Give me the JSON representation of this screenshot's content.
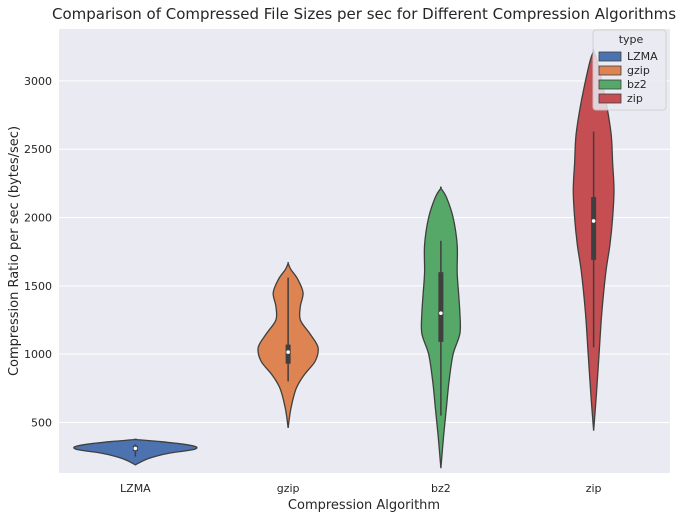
{
  "chart_data": {
    "type": "violin",
    "title": "Comparison of Compressed File Sizes per sec for Different Compression Algorithms",
    "xlabel": "Compression Algorithm",
    "ylabel": "Compression Ratio per sec (bytes/sec)",
    "categories": [
      "LZMA",
      "gzip",
      "bz2",
      "zip"
    ],
    "ylim": [
      130,
      3380
    ],
    "yticks": [
      500,
      1000,
      1500,
      2000,
      2500,
      3000
    ],
    "grid": true,
    "legend": {
      "title": "type",
      "position": "top-right",
      "entries": [
        "LZMA",
        "gzip",
        "bz2",
        "zip"
      ]
    },
    "colors": {
      "LZMA": "#4c72b0",
      "gzip": "#dd8452",
      "bz2": "#55a868",
      "zip": "#c44e52",
      "background": "#eaeaf2",
      "grid": "#ffffff",
      "outline": "#3f3f3f"
    },
    "series": [
      {
        "name": "LZMA",
        "whisker": [
          250,
          340
        ],
        "q1": 290,
        "q3": 330,
        "median": 310,
        "profile": [
          [
            190,
            0
          ],
          [
            230,
            0.08
          ],
          [
            260,
            0.18
          ],
          [
            280,
            0.28
          ],
          [
            300,
            0.42
          ],
          [
            320,
            0.45
          ],
          [
            340,
            0.36
          ],
          [
            360,
            0.18
          ],
          [
            375,
            0
          ]
        ]
      },
      {
        "name": "gzip",
        "whisker": [
          800,
          1560
        ],
        "q1": 930,
        "q3": 1070,
        "median": 1015,
        "profile": [
          [
            460,
            0
          ],
          [
            600,
            0.02
          ],
          [
            750,
            0.06
          ],
          [
            850,
            0.12
          ],
          [
            950,
            0.2
          ],
          [
            1050,
            0.22
          ],
          [
            1150,
            0.16
          ],
          [
            1250,
            0.09
          ],
          [
            1350,
            0.09
          ],
          [
            1450,
            0.11
          ],
          [
            1550,
            0.07
          ],
          [
            1620,
            0.02
          ],
          [
            1665,
            0
          ]
        ]
      },
      {
        "name": "bz2",
        "whisker": [
          550,
          1830
        ],
        "q1": 1090,
        "q3": 1600,
        "median": 1300,
        "profile": [
          [
            165,
            0
          ],
          [
            400,
            0.02
          ],
          [
            600,
            0.04
          ],
          [
            800,
            0.06
          ],
          [
            1000,
            0.09
          ],
          [
            1150,
            0.14
          ],
          [
            1300,
            0.14
          ],
          [
            1450,
            0.13
          ],
          [
            1600,
            0.12
          ],
          [
            1800,
            0.12
          ],
          [
            2000,
            0.09
          ],
          [
            2150,
            0.04
          ],
          [
            2215,
            0
          ]
        ]
      },
      {
        "name": "zip",
        "whisker": [
          1050,
          2630
        ],
        "q1": 1690,
        "q3": 2150,
        "median": 1975,
        "profile": [
          [
            440,
            0
          ],
          [
            700,
            0.02
          ],
          [
            1000,
            0.04
          ],
          [
            1300,
            0.06
          ],
          [
            1600,
            0.09
          ],
          [
            1800,
            0.12
          ],
          [
            2000,
            0.14
          ],
          [
            2200,
            0.15
          ],
          [
            2400,
            0.14
          ],
          [
            2600,
            0.13
          ],
          [
            2800,
            0.1
          ],
          [
            3000,
            0.06
          ],
          [
            3150,
            0.025
          ],
          [
            3220,
            0
          ]
        ]
      }
    ]
  }
}
